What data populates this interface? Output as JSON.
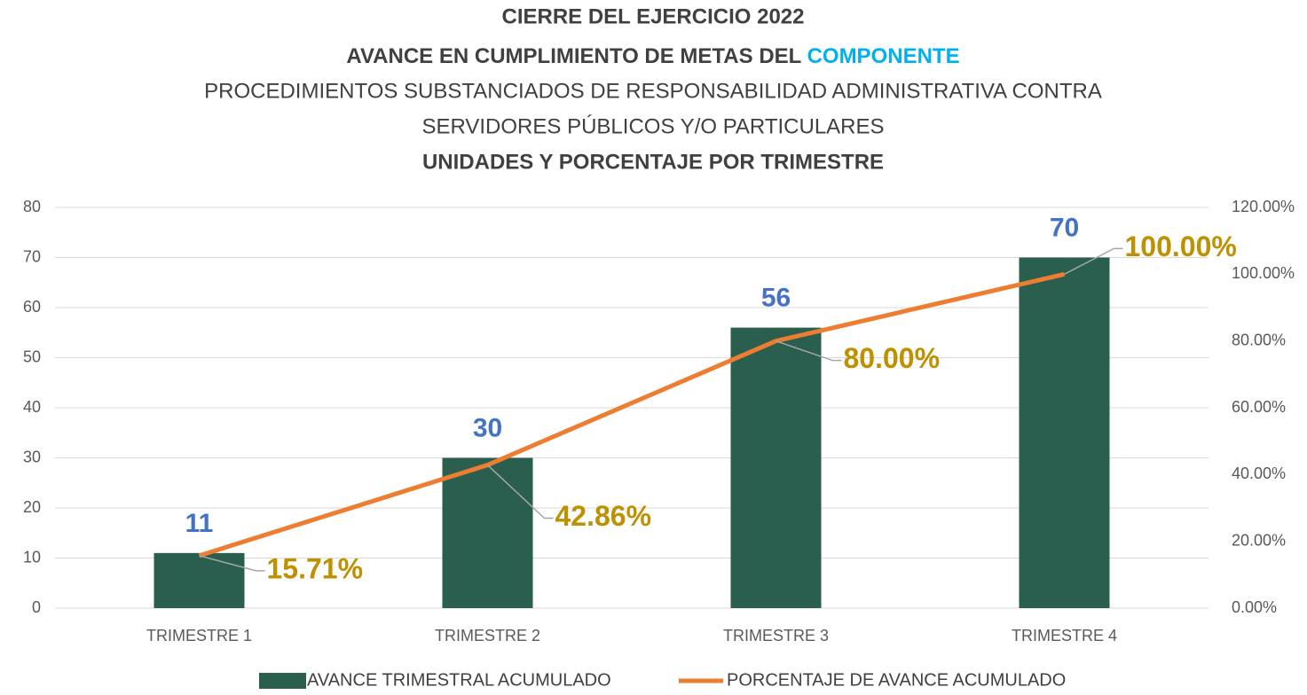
{
  "chart_data": {
    "type": "bar-line",
    "title": "CIERRE DEL EJERCICIO 2022",
    "subtitle": {
      "lead": "AVANCE EN CUMPLIMIENTO DE METAS DEL",
      "highlight": "COMPONENTE"
    },
    "description": [
      "PROCEDIMIENTOS SUBSTANCIADOS DE RESPONSABILIDAD ADMINISTRATIVA CONTRA",
      "SERVIDORES PÚBLICOS Y/O PARTICULARES"
    ],
    "caption": "UNIDADES Y PORCENTAJE POR TRIMESTRE",
    "categories": [
      "TRIMESTRE 1",
      "TRIMESTRE 2",
      "TRIMESTRE 3",
      "TRIMESTRE 4"
    ],
    "series": [
      {
        "name": "AVANCE TRIMESTRAL ACUMULADO",
        "type": "bar",
        "color": "#2a5e4e",
        "label_color": "#4472c4",
        "values": [
          11,
          30,
          56,
          70
        ]
      },
      {
        "name": "PORCENTAJE DE AVANCE ACUMULADO",
        "type": "line",
        "axis": "y2",
        "color": "#ed7d31",
        "label_color": "#bf9000",
        "values": [
          15.71,
          42.86,
          80,
          100
        ],
        "value_labels": [
          "15.71%",
          "42.86%",
          "80.00%",
          "100.00%"
        ]
      }
    ],
    "ylim": [
      0,
      80
    ],
    "yticks": [
      0,
      10,
      20,
      30,
      40,
      50,
      60,
      70,
      80
    ],
    "y2lim": [
      0,
      120
    ],
    "y2ticks": [
      {
        "value": 0,
        "label": "0.00%"
      },
      {
        "value": 20,
        "label": "20.00%"
      },
      {
        "value": 40,
        "label": "40.00%"
      },
      {
        "value": 60,
        "label": "60.00%"
      },
      {
        "value": 80,
        "label": "80.00%"
      },
      {
        "value": 100,
        "label": "100.00%"
      },
      {
        "value": 120,
        "label": "120.00%"
      }
    ],
    "grid": true,
    "legend": "bottom"
  }
}
